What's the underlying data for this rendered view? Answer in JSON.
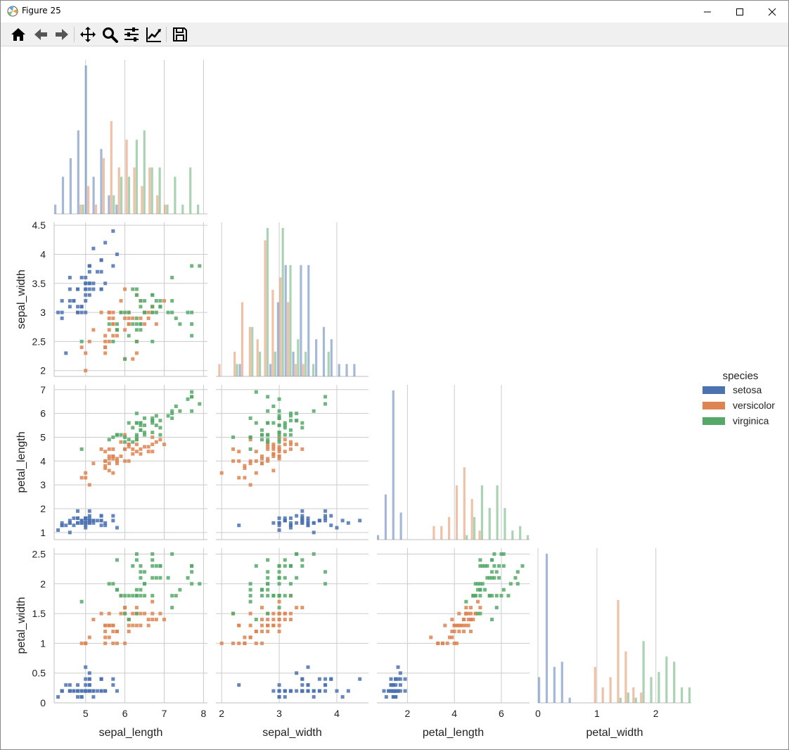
{
  "window": {
    "title": "Figure 25"
  },
  "toolbar": {
    "buttons": [
      {
        "name": "home-icon"
      },
      {
        "name": "back-icon"
      },
      {
        "name": "forward-icon"
      },
      {
        "name": "pan-icon"
      },
      {
        "name": "zoom-icon"
      },
      {
        "name": "configure-subplots-icon"
      },
      {
        "name": "edit-axis-icon"
      },
      {
        "name": "save-icon"
      }
    ]
  },
  "colors": {
    "setosa": "#4c72b0",
    "versicolor": "#dd8452",
    "virginica": "#55a868",
    "grid": "#cccccc"
  },
  "chart_data": {
    "type": "pairgrid",
    "corner": true,
    "diag_kind": "hist",
    "offdiag_kind": "hist2d",
    "variables": [
      "sepal_length",
      "sepal_width",
      "petal_length",
      "petal_width"
    ],
    "axes": {
      "sepal_length": {
        "label": "sepal_length",
        "lim": [
          4.2,
          8.1
        ],
        "ticks": [
          5,
          6,
          7,
          8
        ]
      },
      "sepal_width": {
        "label": "sepal_width",
        "lim": [
          1.9,
          4.55
        ],
        "ticks": [
          2,
          3,
          4
        ]
      },
      "petal_width_y": {
        "label": "sepal_width",
        "lim": [
          1.9,
          4.55
        ],
        "ticks": [
          "2.0",
          "2.5",
          "3.0",
          "3.5",
          "4.0",
          "4.5"
        ]
      },
      "petal_length": {
        "label": "petal_length",
        "lim": [
          0.7,
          7.2
        ],
        "ticks": [
          1,
          2,
          3,
          4,
          5,
          6,
          7
        ]
      },
      "petal_width": {
        "label": "petal_width",
        "lim": [
          0.0,
          2.6
        ],
        "ticks": [
          "0.0",
          "0.5",
          "1.0",
          "1.5",
          "2.0",
          "2.5"
        ]
      },
      "petal_width_x": {
        "label": "petal_width",
        "lim": [
          0.0,
          2.6
        ],
        "ticks": [
          0,
          1,
          2
        ]
      }
    },
    "legend": {
      "title": "species",
      "entries": [
        "setosa",
        "versicolor",
        "virginica"
      ],
      "placement": "right"
    },
    "species": [
      {
        "name": "setosa",
        "sepal_length": [
          5.1,
          4.9,
          4.7,
          4.6,
          5.0,
          5.4,
          4.6,
          5.0,
          4.4,
          4.9,
          5.4,
          4.8,
          4.8,
          4.3,
          5.8,
          5.7,
          5.4,
          5.1,
          5.7,
          5.1,
          5.4,
          5.1,
          4.6,
          5.1,
          4.8,
          5.0,
          5.0,
          5.2,
          5.2,
          4.7,
          4.8,
          5.4,
          5.2,
          5.5,
          4.9,
          5.0,
          5.5,
          4.9,
          4.4,
          5.1,
          5.0,
          4.5,
          4.4,
          5.0,
          5.1,
          4.8,
          5.1,
          4.6,
          5.3,
          5.0
        ],
        "sepal_width": [
          3.5,
          3.0,
          3.2,
          3.1,
          3.6,
          3.9,
          3.4,
          3.4,
          2.9,
          3.1,
          3.7,
          3.4,
          3.0,
          3.0,
          4.0,
          4.4,
          3.9,
          3.5,
          3.8,
          3.8,
          3.4,
          3.7,
          3.6,
          3.3,
          3.4,
          3.0,
          3.4,
          3.5,
          3.4,
          3.2,
          3.1,
          3.4,
          4.1,
          4.2,
          3.1,
          3.2,
          3.5,
          3.6,
          3.0,
          3.4,
          3.5,
          2.3,
          3.2,
          3.5,
          3.8,
          3.0,
          3.8,
          3.2,
          3.7,
          3.3
        ],
        "petal_length": [
          1.4,
          1.4,
          1.3,
          1.5,
          1.4,
          1.7,
          1.4,
          1.5,
          1.4,
          1.5,
          1.5,
          1.6,
          1.4,
          1.1,
          1.2,
          1.5,
          1.3,
          1.4,
          1.7,
          1.5,
          1.7,
          1.5,
          1.0,
          1.7,
          1.9,
          1.6,
          1.6,
          1.5,
          1.4,
          1.6,
          1.6,
          1.5,
          1.5,
          1.4,
          1.5,
          1.2,
          1.3,
          1.4,
          1.3,
          1.5,
          1.3,
          1.3,
          1.3,
          1.6,
          1.9,
          1.4,
          1.6,
          1.4,
          1.5,
          1.4
        ],
        "petal_width": [
          0.2,
          0.2,
          0.2,
          0.2,
          0.2,
          0.4,
          0.3,
          0.2,
          0.2,
          0.1,
          0.2,
          0.2,
          0.1,
          0.1,
          0.2,
          0.4,
          0.4,
          0.3,
          0.3,
          0.3,
          0.2,
          0.4,
          0.2,
          0.5,
          0.2,
          0.2,
          0.4,
          0.2,
          0.2,
          0.2,
          0.2,
          0.4,
          0.1,
          0.2,
          0.2,
          0.2,
          0.2,
          0.1,
          0.2,
          0.2,
          0.3,
          0.3,
          0.2,
          0.6,
          0.4,
          0.3,
          0.2,
          0.2,
          0.2,
          0.2
        ]
      },
      {
        "name": "versicolor",
        "sepal_length": [
          7.0,
          6.4,
          6.9,
          5.5,
          6.5,
          5.7,
          6.3,
          4.9,
          6.6,
          5.2,
          5.0,
          5.9,
          6.0,
          6.1,
          5.6,
          6.7,
          5.6,
          5.8,
          6.2,
          5.6,
          5.9,
          6.1,
          6.3,
          6.1,
          6.4,
          6.6,
          6.8,
          6.7,
          6.0,
          5.7,
          5.5,
          5.5,
          5.8,
          6.0,
          5.4,
          6.0,
          6.7,
          6.3,
          5.6,
          5.5,
          5.5,
          6.1,
          5.8,
          5.0,
          5.6,
          5.7,
          5.7,
          6.2,
          5.1,
          5.7
        ],
        "sepal_width": [
          3.2,
          3.2,
          3.1,
          2.3,
          2.8,
          2.8,
          3.3,
          2.4,
          2.9,
          2.7,
          2.0,
          3.0,
          2.2,
          2.9,
          2.9,
          3.1,
          3.0,
          2.7,
          2.2,
          2.5,
          3.2,
          2.8,
          2.5,
          2.8,
          2.9,
          3.0,
          2.8,
          3.0,
          2.9,
          2.6,
          2.4,
          2.4,
          2.7,
          2.7,
          3.0,
          3.4,
          3.1,
          2.3,
          3.0,
          2.5,
          2.6,
          3.0,
          2.6,
          2.3,
          2.7,
          3.0,
          2.9,
          2.9,
          2.5,
          2.8
        ],
        "petal_length": [
          4.7,
          4.5,
          4.9,
          4.0,
          4.6,
          4.5,
          4.7,
          3.3,
          4.6,
          3.9,
          3.5,
          4.2,
          4.0,
          4.7,
          3.6,
          4.4,
          4.5,
          4.1,
          4.5,
          3.9,
          4.8,
          4.0,
          4.9,
          4.7,
          4.3,
          4.4,
          4.8,
          5.0,
          4.5,
          3.5,
          3.8,
          3.7,
          3.9,
          5.1,
          4.5,
          4.5,
          4.7,
          4.4,
          4.1,
          4.0,
          4.4,
          4.6,
          4.0,
          3.3,
          4.2,
          4.2,
          4.2,
          4.3,
          3.0,
          4.1
        ],
        "petal_width": [
          1.4,
          1.5,
          1.5,
          1.3,
          1.5,
          1.3,
          1.6,
          1.0,
          1.3,
          1.4,
          1.0,
          1.5,
          1.0,
          1.4,
          1.3,
          1.4,
          1.5,
          1.0,
          1.5,
          1.1,
          1.8,
          1.3,
          1.5,
          1.2,
          1.3,
          1.4,
          1.4,
          1.7,
          1.5,
          1.0,
          1.1,
          1.0,
          1.2,
          1.6,
          1.5,
          1.6,
          1.5,
          1.3,
          1.3,
          1.3,
          1.2,
          1.4,
          1.2,
          1.0,
          1.3,
          1.2,
          1.3,
          1.3,
          1.1,
          1.3
        ]
      },
      {
        "name": "virginica",
        "sepal_length": [
          6.3,
          5.8,
          7.1,
          6.3,
          6.5,
          7.6,
          4.9,
          7.3,
          6.7,
          7.2,
          6.5,
          6.4,
          6.8,
          5.7,
          5.8,
          6.4,
          6.5,
          7.7,
          7.7,
          6.0,
          6.9,
          5.6,
          7.7,
          6.3,
          6.7,
          7.2,
          6.2,
          6.1,
          6.4,
          7.2,
          7.4,
          7.9,
          6.4,
          6.3,
          6.1,
          7.7,
          6.3,
          6.4,
          6.0,
          6.9,
          6.7,
          6.9,
          5.8,
          6.8,
          6.7,
          6.7,
          6.3,
          6.5,
          6.2,
          5.9
        ],
        "sepal_width": [
          3.3,
          2.7,
          3.0,
          2.9,
          3.0,
          3.0,
          2.5,
          2.9,
          2.5,
          3.6,
          3.2,
          2.7,
          3.0,
          2.5,
          2.8,
          3.2,
          3.0,
          3.8,
          2.6,
          2.2,
          3.2,
          2.8,
          2.8,
          2.7,
          3.3,
          3.2,
          2.8,
          3.0,
          2.8,
          3.0,
          2.8,
          3.8,
          2.8,
          2.8,
          2.6,
          3.0,
          3.4,
          3.1,
          3.0,
          3.1,
          3.1,
          3.1,
          2.7,
          3.2,
          3.3,
          3.0,
          2.5,
          3.0,
          3.4,
          3.0
        ],
        "petal_length": [
          6.0,
          5.1,
          5.9,
          5.6,
          5.8,
          6.6,
          4.5,
          6.3,
          5.8,
          6.1,
          5.1,
          5.3,
          5.5,
          5.0,
          5.1,
          5.3,
          5.5,
          6.7,
          6.9,
          5.0,
          5.7,
          4.9,
          6.7,
          4.9,
          5.7,
          6.0,
          4.8,
          4.9,
          5.6,
          5.8,
          6.1,
          6.4,
          5.6,
          5.1,
          5.6,
          6.1,
          5.6,
          5.5,
          4.8,
          5.4,
          5.6,
          5.1,
          5.1,
          5.9,
          5.7,
          5.2,
          5.0,
          5.2,
          5.4,
          5.1
        ],
        "petal_width": [
          2.5,
          1.9,
          2.1,
          1.8,
          2.2,
          2.1,
          1.7,
          1.8,
          1.8,
          2.5,
          2.0,
          1.9,
          2.1,
          2.0,
          2.4,
          2.3,
          1.8,
          2.2,
          2.3,
          1.5,
          2.3,
          2.0,
          2.0,
          1.8,
          2.1,
          1.8,
          1.8,
          1.8,
          2.1,
          1.6,
          1.9,
          2.0,
          2.2,
          1.5,
          1.4,
          2.3,
          2.4,
          1.8,
          1.8,
          2.1,
          2.4,
          2.3,
          1.9,
          2.3,
          2.5,
          2.3,
          1.9,
          2.0,
          2.3,
          1.8
        ]
      }
    ]
  }
}
